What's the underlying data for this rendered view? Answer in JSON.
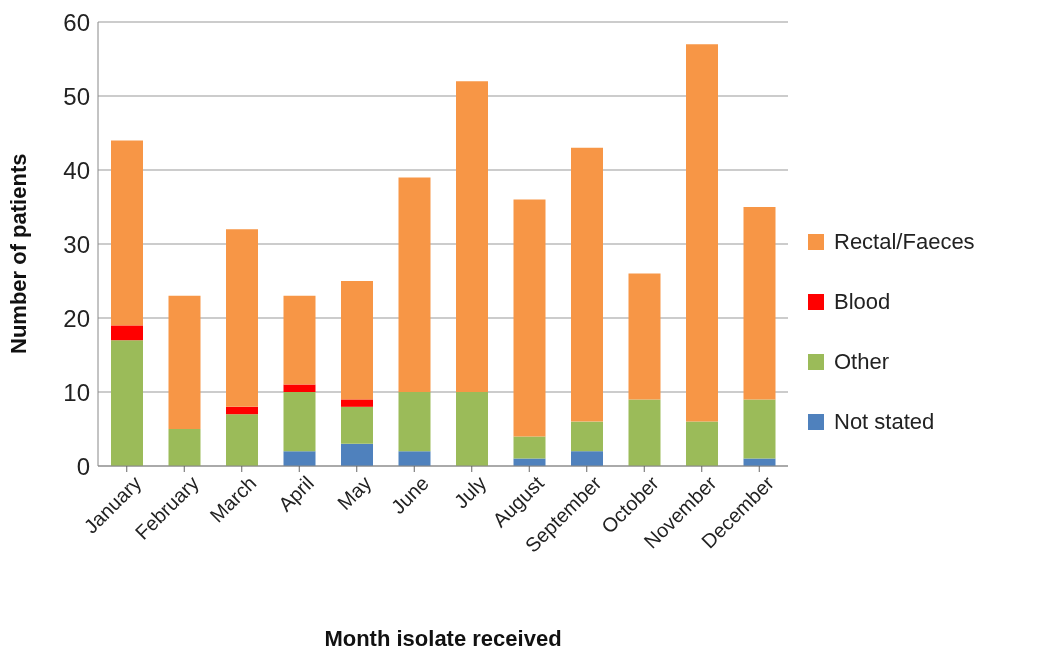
{
  "chart_data": {
    "type": "bar",
    "stacked": true,
    "xlabel": "Month isolate received",
    "ylabel": "Number of patients",
    "categories": [
      "January",
      "February",
      "March",
      "April",
      "May",
      "June",
      "July",
      "August",
      "September",
      "October",
      "November",
      "December"
    ],
    "series": [
      {
        "name": "Not stated",
        "color": "#4f81bd",
        "values": [
          0,
          0,
          0,
          2,
          3,
          2,
          0,
          1,
          2,
          0,
          0,
          1
        ]
      },
      {
        "name": "Other",
        "color": "#9bbb59",
        "values": [
          17,
          5,
          7,
          8,
          5,
          8,
          10,
          3,
          4,
          9,
          6,
          8
        ]
      },
      {
        "name": "Blood",
        "color": "#ff0000",
        "values": [
          2,
          0,
          1,
          1,
          1,
          0,
          0,
          0,
          0,
          0,
          0,
          0
        ]
      },
      {
        "name": "Rectal/Faeces",
        "color": "#f79646",
        "values": [
          25,
          18,
          24,
          12,
          16,
          29,
          42,
          32,
          37,
          17,
          51,
          26
        ]
      }
    ],
    "ylim": [
      0,
      60
    ],
    "yticks": [
      0,
      10,
      20,
      30,
      40,
      50,
      60
    ],
    "grid": "y",
    "legend": "right"
  }
}
